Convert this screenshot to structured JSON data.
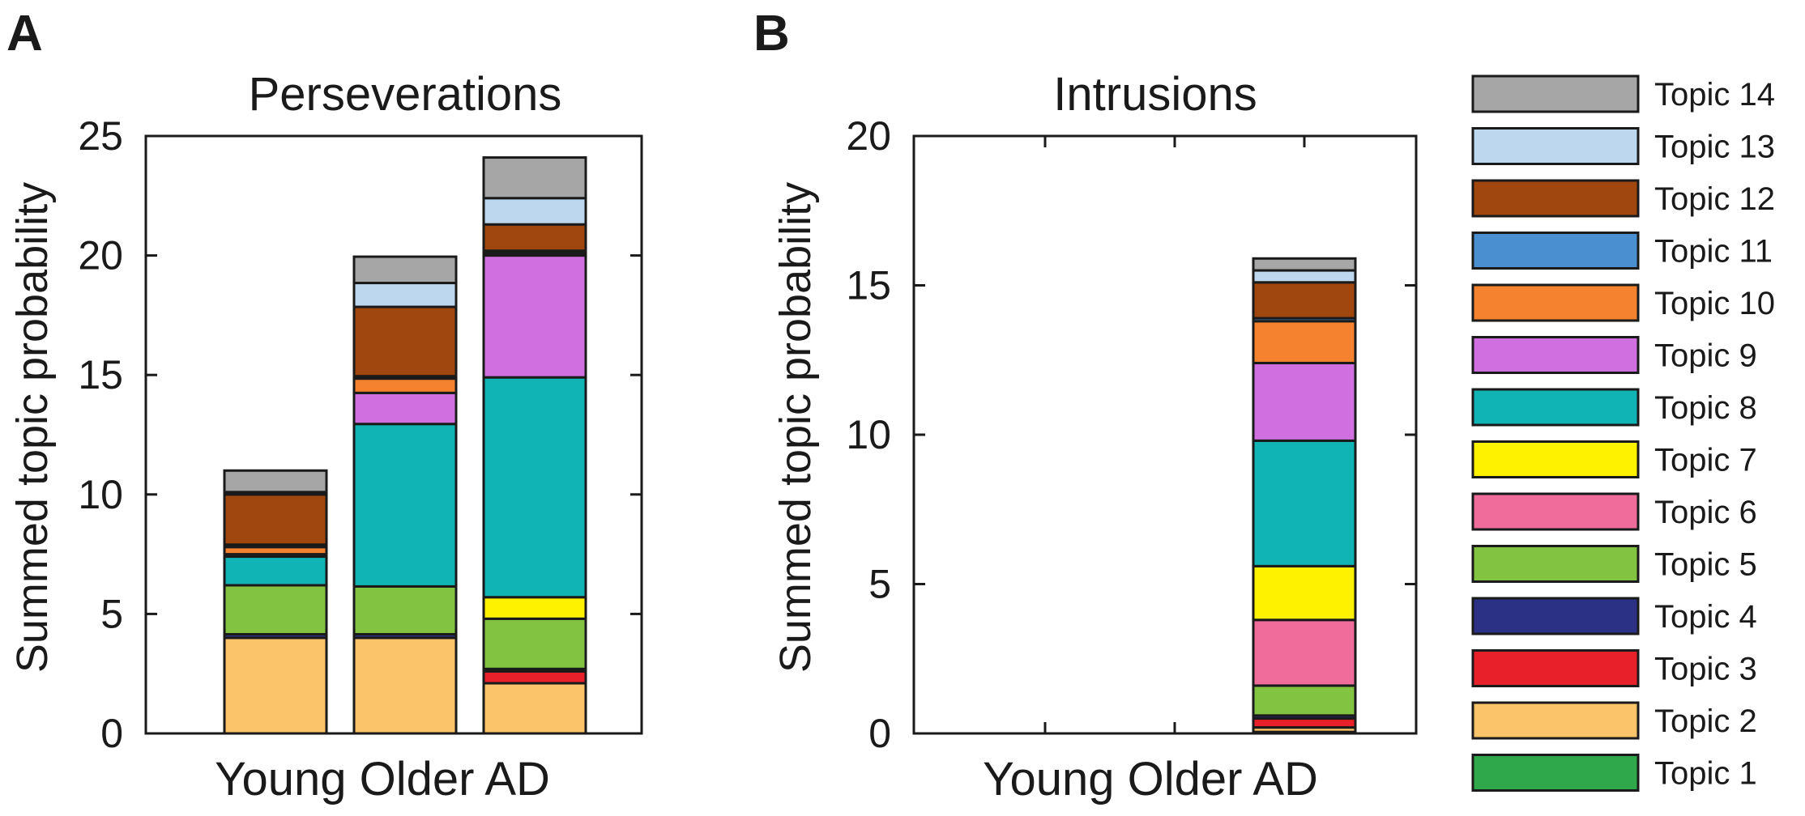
{
  "chart_data": [
    {
      "panel": "A",
      "type": "bar",
      "stacked": true,
      "title": "Perseverations",
      "xlabel": "Young Older AD",
      "ylabel": "Summed topic probability",
      "categories": [
        "Young",
        "Older",
        "AD"
      ],
      "ylim": [
        0,
        25
      ],
      "yticks": [
        0,
        5,
        10,
        15,
        20,
        25
      ],
      "series": [
        {
          "name": "Topic 1",
          "values": [
            0,
            0,
            0
          ]
        },
        {
          "name": "Topic 2",
          "values": [
            4.0,
            4.0,
            2.1
          ]
        },
        {
          "name": "Topic 3",
          "values": [
            0,
            0,
            0.5
          ]
        },
        {
          "name": "Topic 4",
          "values": [
            0.15,
            0.15,
            0.1
          ]
        },
        {
          "name": "Topic 5",
          "values": [
            2.05,
            2.0,
            2.1
          ]
        },
        {
          "name": "Topic 6",
          "values": [
            0,
            0,
            0
          ]
        },
        {
          "name": "Topic 7",
          "values": [
            0,
            0,
            0.9
          ]
        },
        {
          "name": "Topic 8",
          "values": [
            1.2,
            6.8,
            9.2
          ]
        },
        {
          "name": "Topic 9",
          "values": [
            0.1,
            1.3,
            5.1
          ]
        },
        {
          "name": "Topic 10",
          "values": [
            0.3,
            0.6,
            0.1
          ]
        },
        {
          "name": "Topic 11",
          "values": [
            0.1,
            0.1,
            0.1
          ]
        },
        {
          "name": "Topic 12",
          "values": [
            2.1,
            2.9,
            1.1
          ]
        },
        {
          "name": "Topic 13",
          "values": [
            0.1,
            1.0,
            1.1
          ]
        },
        {
          "name": "Topic 14",
          "values": [
            0.9,
            1.1,
            1.7
          ]
        }
      ]
    },
    {
      "panel": "B",
      "type": "bar",
      "stacked": true,
      "title": "Intrusions",
      "xlabel": "Young Older AD",
      "ylabel": "Summed topic probability",
      "categories": [
        "Young",
        "Older",
        "AD"
      ],
      "ylim": [
        0,
        20
      ],
      "yticks": [
        0,
        5,
        10,
        15,
        20
      ],
      "series": [
        {
          "name": "Topic 1",
          "values": [
            0,
            0,
            0.05
          ]
        },
        {
          "name": "Topic 2",
          "values": [
            0,
            0,
            0.15
          ]
        },
        {
          "name": "Topic 3",
          "values": [
            0,
            0,
            0.3
          ]
        },
        {
          "name": "Topic 4",
          "values": [
            0,
            0,
            0.1
          ]
        },
        {
          "name": "Topic 5",
          "values": [
            0,
            0,
            1.0
          ]
        },
        {
          "name": "Topic 6",
          "values": [
            0,
            0,
            2.2
          ]
        },
        {
          "name": "Topic 7",
          "values": [
            0,
            0,
            1.8
          ]
        },
        {
          "name": "Topic 8",
          "values": [
            0,
            0,
            4.2
          ]
        },
        {
          "name": "Topic 9",
          "values": [
            0,
            0,
            2.6
          ]
        },
        {
          "name": "Topic 10",
          "values": [
            0,
            0,
            1.4
          ]
        },
        {
          "name": "Topic 11",
          "values": [
            0,
            0,
            0.1
          ]
        },
        {
          "name": "Topic 12",
          "values": [
            0,
            0,
            1.2
          ]
        },
        {
          "name": "Topic 13",
          "values": [
            0,
            0,
            0.4
          ]
        },
        {
          "name": "Topic 14",
          "values": [
            0,
            0,
            0.4
          ]
        }
      ]
    }
  ],
  "legend": {
    "placement": "right",
    "items": [
      {
        "name": "Topic 14",
        "color": "#a6a6a6"
      },
      {
        "name": "Topic 13",
        "color": "#bdd7ee"
      },
      {
        "name": "Topic 12",
        "color": "#a0460f"
      },
      {
        "name": "Topic 11",
        "color": "#4a90d0"
      },
      {
        "name": "Topic 10",
        "color": "#f5822e"
      },
      {
        "name": "Topic 9",
        "color": "#d070e0"
      },
      {
        "name": "Topic 8",
        "color": "#10b4b4"
      },
      {
        "name": "Topic 7",
        "color": "#fff200"
      },
      {
        "name": "Topic 6",
        "color": "#f06c9a"
      },
      {
        "name": "Topic 5",
        "color": "#82c341"
      },
      {
        "name": "Topic 4",
        "color": "#2b3286"
      },
      {
        "name": "Topic 3",
        "color": "#e8202a"
      },
      {
        "name": "Topic 2",
        "color": "#fcc46a"
      },
      {
        "name": "Topic 1",
        "color": "#2ea84a"
      }
    ]
  }
}
